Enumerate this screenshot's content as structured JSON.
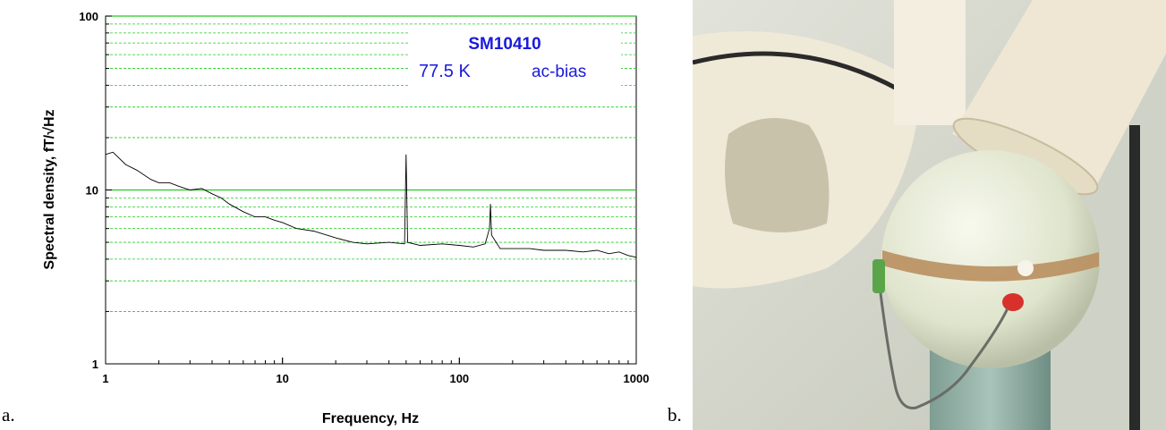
{
  "panel_labels": {
    "a": "a.",
    "b": "b."
  },
  "legend": {
    "sample": "SM10410",
    "temperature": "77.5 K",
    "mode": "ac-bias"
  },
  "chart_data": {
    "type": "line",
    "title": "",
    "xlabel": "Frequency, Hz",
    "ylabel": "Spectral density, fT/√Hz",
    "xscale": "log",
    "yscale": "log",
    "xlim": [
      1,
      1000
    ],
    "ylim": [
      1,
      100
    ],
    "xticks": [
      "1",
      "10",
      "100",
      "1000"
    ],
    "yticks": [
      "1",
      "10",
      "100"
    ],
    "grid": "horizontal minor lines (green, dashed); solid green at 10",
    "colors": {
      "line": "#000000",
      "grid": "#22cc22",
      "legend_text": "#1a1adc"
    },
    "series": [
      {
        "x": [
          1,
          1.1,
          1.3,
          1.5,
          1.8,
          2.0,
          2.3,
          2.6,
          3.0,
          3.5,
          4.0,
          4.5,
          5.0,
          6.0,
          7.0,
          8.0,
          9.0,
          10,
          12,
          15,
          20,
          25,
          30,
          40,
          49,
          50,
          51,
          60,
          80,
          100,
          120,
          140,
          148,
          150,
          152,
          170,
          200,
          250,
          300,
          400,
          500,
          600,
          700,
          800,
          900,
          1000
        ],
        "y": [
          16,
          16.5,
          14,
          13,
          11.5,
          11,
          11,
          10.5,
          10,
          10.2,
          9.5,
          9.0,
          8.3,
          7.5,
          7.0,
          7.0,
          6.7,
          6.5,
          6.0,
          5.8,
          5.3,
          5.0,
          4.9,
          5.0,
          4.9,
          16,
          5.0,
          4.8,
          4.9,
          4.8,
          4.7,
          4.9,
          6.0,
          8.3,
          5.5,
          4.6,
          4.6,
          4.6,
          4.5,
          4.5,
          4.4,
          4.5,
          4.3,
          4.4,
          4.2,
          4.1
        ]
      }
    ]
  },
  "photo": {
    "colors": {
      "wall": "#d7d9cf",
      "fixture": "#f1ecdd",
      "sphere": "#e9edd9",
      "band": "#b98f5f",
      "stand": "#8fb0a6",
      "red_electrode": "#d8312c",
      "green_electrode": "#5aa449",
      "cable": "#2a2a2a"
    }
  }
}
